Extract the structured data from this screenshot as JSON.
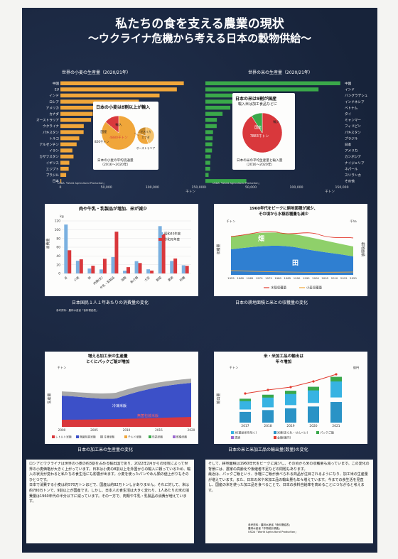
{
  "title_line1": "私たちの食を支える農業の現状",
  "title_line2": "～ウクライナ危機から考える日本の穀物供給～",
  "wheat": {
    "title": "世界の小麦の生産量（2020/21年）",
    "unit": "千トン",
    "countries": [
      "中国",
      "EU",
      "インド",
      "ロシア",
      "アメリカ",
      "カナダ",
      "オーストラリア",
      "ウクライナ",
      "パキスタン",
      "トルコ",
      "アルゼンチン",
      "イラン",
      "カザフスタン",
      "イギリス",
      "エジプト",
      "ブラジル",
      "日本"
    ],
    "values": [
      134250,
      126700,
      107860,
      85350,
      49690,
      35180,
      33300,
      25420,
      25250,
      20500,
      17640,
      13000,
      14260,
      9660,
      9000,
      6250,
      950
    ],
    "ticks": [
      "0",
      "50,000",
      "100,000",
      "150,000"
    ],
    "callout": "日本の小麦は8割以上が輸入",
    "pie_labels": [
      "国産",
      "輸入",
      "アメリカ",
      "カナダ",
      "オーストラリア"
    ],
    "pie_values": [
      "820千トン",
      "4880千トン"
    ],
    "pie_caption": "日本の小麦の平均流通量\n（2016～2020年）"
  },
  "rice": {
    "title": "世界の米の生産量（2020/21年）",
    "unit": "千トン",
    "countries": [
      "中国",
      "インド",
      "バングラデシュ",
      "インドネシア",
      "ベトナム",
      "タイ",
      "ミャンマー",
      "フィリピン",
      "パキスタン",
      "ブラジル",
      "日本",
      "アメリカ",
      "カンボジア",
      "ナイジェリア",
      "ネパール",
      "スリランカ",
      "その他"
    ],
    "values": [
      148300,
      124370,
      34600,
      34500,
      27380,
      18860,
      12600,
      12420,
      8400,
      8000,
      7600,
      7230,
      5800,
      5300,
      5200,
      3500,
      45000
    ],
    "ticks": [
      "0",
      "50,000",
      "100,000",
      "150,000"
    ],
    "callout": "日本の米は9割が国産",
    "callout_sub": "輸入米は加工食品などに",
    "pie_labels": [
      "国産",
      "輸入"
    ],
    "pie_values": [
      "7883千トン"
    ],
    "pie_caption": "日本の米の平均生産量と輸入量\n（2016～2020年）"
  },
  "consumption": {
    "title": "日本国民１人１年あたりの消費量の変化",
    "callout": "肉や牛乳・乳製品が増加、米が減少",
    "ylabel": "消費量",
    "unit": "kg",
    "categories": [
      "米",
      "小麦",
      "卵",
      "肉類(生)",
      "牛乳・乳製品",
      "油脂",
      "魚介類",
      "大豆",
      "野菜",
      "果実",
      "砂糖"
    ],
    "series": [
      {
        "name": "昭和40年度",
        "color": "#7ab0e0",
        "values": [
          111.7,
          29.0,
          11.3,
          9.2,
          37.5,
          6.3,
          28.1,
          9.5,
          108.1,
          28.5,
          18.7
        ]
      },
      {
        "name": "令和元年度",
        "color": "#d9383c",
        "values": [
          53.0,
          32.3,
          17.6,
          33.5,
          95.4,
          14.4,
          23.8,
          6.6,
          90.0,
          34.2,
          17.4
        ]
      }
    ],
    "ticks": [
      "0",
      "20",
      "40",
      "60",
      "80",
      "100",
      "120"
    ]
  },
  "area": {
    "title": "日本の耕地面積と米との収穫量の変化",
    "callout": "1960年代をピークに耕地面積が減少、\nその頃から水稲収穫量も減少",
    "ylabel": "収穫量",
    "ylabel2": "耕地面積",
    "unit": "千トン",
    "unit2": "千ha",
    "label_rice": "田",
    "label_field": "畑",
    "x": [
      "1955",
      "1960",
      "1965",
      "1970",
      "1975",
      "1980",
      "1985",
      "1990",
      "1995",
      "2000",
      "2005",
      "2010",
      "2015",
      "2020"
    ],
    "legend": [
      "水稲収穫量",
      "小麦収穫量"
    ]
  },
  "processed": {
    "title": "日本の加工米の生産量の変化",
    "callout": "増える加工米の生産量\nとくにパックご飯が増加",
    "ylabel": "生産量",
    "unit": "千トン",
    "labels": [
      "冷凍米飯",
      "無菌包装米飯"
    ],
    "x": [
      "2000",
      "2005",
      "2010",
      "2015",
      "2020"
    ],
    "legend": [
      "レトルト米飯",
      "無菌包装米飯",
      "冷凍米飯",
      "チルド米飯",
      "缶詰米飯",
      "乾燥米飯"
    ]
  },
  "exports": {
    "title": "日本の米と米加工品の輸出量(数量)の変化",
    "callout": "米・米加工品の輸出は\n年々増加",
    "ylabel": "輸出量",
    "unit": "千トン",
    "unit2": "億円",
    "x": [
      "2017",
      "2018",
      "2019",
      "2020",
      "2021"
    ],
    "values_qty": [
      24,
      28,
      32,
      36,
      46
    ],
    "values_amount": [
      33,
      38,
      42,
      50,
      60
    ],
    "legend": [
      "米(援助米を除く)",
      "米菓(あられ・せんべい)",
      "パックご飯",
      "清酒",
      "金額(億円)"
    ]
  },
  "body_left": "ロシアとウクライナは世界の小麦の約3割を占める輸出国であり、2022年2月からの侵攻によって世界の小麦価格が大きく上がっています。日本は小麦の8割以上を外国からの輸入に頼っているため、輸入の状況が変わると私たちの食生活にも影響が出ます。小麦を使ったパンやめん類の値上がりもそのひとつです。\n日本で消費する小麦は約570万トンほどで、国産は約82万トンしかありません。それに対して、米は約780万トンで、9割以上が国産です。しかし、日本人の食生活は大きく変わり、1人あたりの米の消費量は1960年代の半分以下に減っています。その一方で、肉類や牛乳・乳製品の消費が増えています。",
  "body_right": "そして、耕地面積は1960年代をピークに減少し、その頃から米の収穫量も減っています。この変化の背景には、農家の高齢化や後継者不足などの問題もあります。\n最近は、パックご飯という、手軽にご飯が食べられる商品が注目されるようになり、加工米の生産量が増えています。また、日本の米や米加工品の輸出量も年々増えています。今までの食生活を見直し、国産の米を使った加工品を食べることで、日本の食料自給率を高めることにつながると考えます。",
  "footer_lines": [
    "参考資料：農林水産省「食料需給表」",
    "農林水産省「作物統計調査」",
    "USDA「World Agricultural Production」"
  ]
}
